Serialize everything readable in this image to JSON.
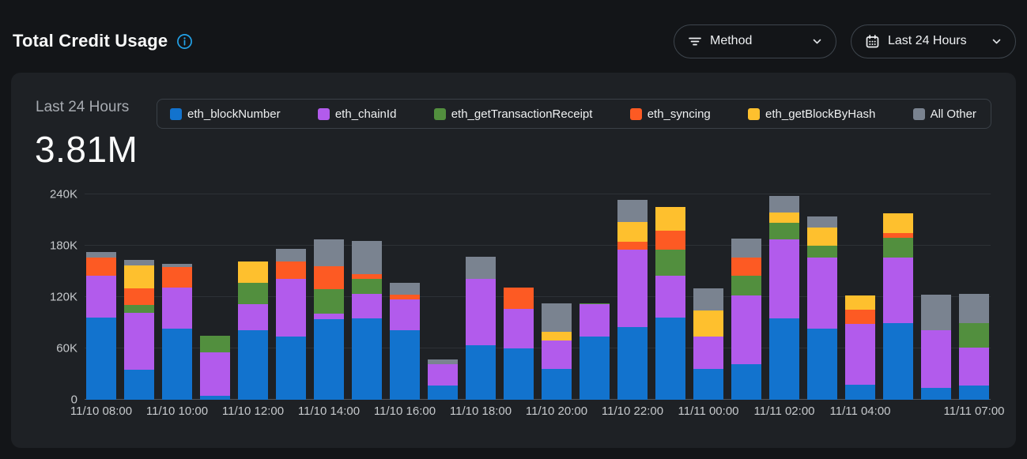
{
  "header": {
    "title": "Total Credit Usage",
    "method_label": "Method",
    "range_label": "Last 24 Hours"
  },
  "card": {
    "period_label": "Last 24 Hours",
    "total_value": "3.81M"
  },
  "icons": {
    "info": "info-circle-icon",
    "filter": "filter-lines-icon",
    "calendar": "calendar-icon",
    "chevron": "chevron-down-icon"
  },
  "colors": {
    "page_bg": "#131518",
    "card_bg": "#1e2125",
    "pill_border": "#3e454d",
    "legend_border": "#3a4047",
    "grid": "#2d3136",
    "baseline": "#51565d",
    "axis_text": "#c5c8cb",
    "muted_text": "#a7abb1",
    "info_blue": "#23a2e8"
  },
  "chart_data": {
    "type": "stacked-bar",
    "title": "Total Credit Usage - Last 24 Hours",
    "unit": "credits",
    "grid": "horizontal",
    "legend_position": "top",
    "ylim": [
      0,
      240000
    ],
    "y_ticks": [
      "0",
      "60K",
      "120K",
      "180K",
      "240K"
    ],
    "categories": [
      "11/10 08:00",
      "11/10 09:00",
      "11/10 10:00",
      "11/10 11:00",
      "11/10 12:00",
      "11/10 13:00",
      "11/10 14:00",
      "11/10 15:00",
      "11/10 16:00",
      "11/10 17:00",
      "11/10 18:00",
      "11/10 19:00",
      "11/10 20:00",
      "11/10 21:00",
      "11/10 22:00",
      "11/10 23:00",
      "11/11 00:00",
      "11/11 01:00",
      "11/11 02:00",
      "11/11 03:00",
      "11/11 04:00",
      "11/11 05:00",
      "11/11 06:00",
      "11/11 07:00"
    ],
    "x_ticks": [
      {
        "index": 0,
        "label": "11/10 08:00"
      },
      {
        "index": 2,
        "label": "11/10 10:00"
      },
      {
        "index": 4,
        "label": "11/10 12:00"
      },
      {
        "index": 6,
        "label": "11/10 14:00"
      },
      {
        "index": 8,
        "label": "11/10 16:00"
      },
      {
        "index": 10,
        "label": "11/10 18:00"
      },
      {
        "index": 12,
        "label": "11/10 20:00"
      },
      {
        "index": 14,
        "label": "11/10 22:00"
      },
      {
        "index": 16,
        "label": "11/11 00:00"
      },
      {
        "index": 18,
        "label": "11/11 02:00"
      },
      {
        "index": 20,
        "label": "11/11 04:00"
      },
      {
        "index": 23,
        "label": "11/11 07:00"
      }
    ],
    "series": [
      {
        "name": "eth_blockNumber",
        "color": "#1273ce",
        "values": [
          96000,
          35000,
          83000,
          5000,
          81000,
          74000,
          94000,
          95000,
          81000,
          17000,
          64000,
          60000,
          36000,
          74000,
          85000,
          96000,
          36000,
          42000,
          95000,
          83000,
          18000,
          90000,
          14000,
          17000
        ]
      },
      {
        "name": "eth_chainId",
        "color": "#b25bec",
        "values": [
          49000,
          67000,
          48000,
          50000,
          31000,
          67000,
          7000,
          29000,
          36000,
          25000,
          77000,
          46000,
          33000,
          38000,
          90000,
          49000,
          38000,
          80000,
          92000,
          83000,
          71000,
          76000,
          67000,
          44000
        ]
      },
      {
        "name": "eth_getTransactionReceipt",
        "color": "#528f3e",
        "values": [
          0,
          9000,
          0,
          20000,
          25000,
          0,
          28000,
          17000,
          0,
          0,
          0,
          0,
          0,
          1000,
          0,
          30000,
          0,
          23000,
          20000,
          14000,
          0,
          23000,
          0,
          29000
        ]
      },
      {
        "name": "eth_syncing",
        "color": "#fd5a23",
        "values": [
          21000,
          19000,
          24000,
          0,
          0,
          21000,
          27000,
          6000,
          6000,
          0,
          0,
          25000,
          0,
          0,
          10000,
          23000,
          0,
          21000,
          0,
          0,
          16000,
          6000,
          0,
          0
        ]
      },
      {
        "name": "eth_getBlockByHash",
        "color": "#fec02e",
        "values": [
          0,
          27000,
          0,
          0,
          25000,
          0,
          0,
          0,
          0,
          0,
          0,
          0,
          10000,
          0,
          23000,
          27000,
          30000,
          0,
          12000,
          21000,
          17000,
          23000,
          0,
          0
        ]
      },
      {
        "name": "All Other",
        "color": "#7a8390",
        "values": [
          7000,
          6000,
          4000,
          0,
          0,
          14000,
          31000,
          39000,
          14000,
          5000,
          26000,
          0,
          34000,
          0,
          26000,
          0,
          26000,
          22000,
          19000,
          13000,
          0,
          0,
          42000,
          34000
        ]
      }
    ]
  }
}
